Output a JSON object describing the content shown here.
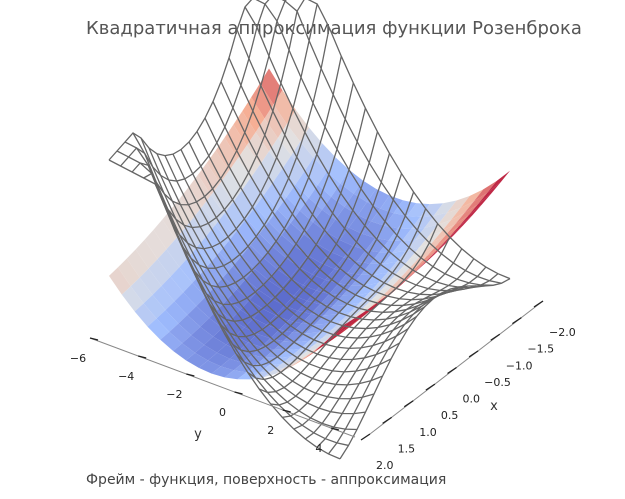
{
  "title": "Квадратичная аппроксимация функции Розенброка",
  "caption": "Фрейм - функция, поверхность - аппроксимация",
  "chart_data": {
    "type": "surface3d",
    "xlabel": "x",
    "ylabel": "y",
    "x_ticks": [
      "−2.0",
      "−1.5",
      "−1.0",
      "−0.5",
      "0.0",
      "0.5",
      "1.0",
      "1.5",
      "2.0"
    ],
    "y_ticks": [
      "−6",
      "−4",
      "−2",
      "0",
      "2",
      "4"
    ],
    "x_tick_values": [
      -2.0,
      -1.5,
      -1.0,
      -0.5,
      0.0,
      0.5,
      1.0,
      1.5,
      2.0
    ],
    "y_tick_values": [
      -6,
      -4,
      -2,
      0,
      2,
      4
    ],
    "xlim": [
      -2,
      2
    ],
    "ylim": [
      -6,
      5
    ],
    "wireframe": "rosenbrock function f(x,y) = (1-x)^2 + 100(y-x^2)^2",
    "surface": "quadratic approximation",
    "colormap": "coolwarm",
    "wireframe_color": "#666666",
    "grid": false
  }
}
